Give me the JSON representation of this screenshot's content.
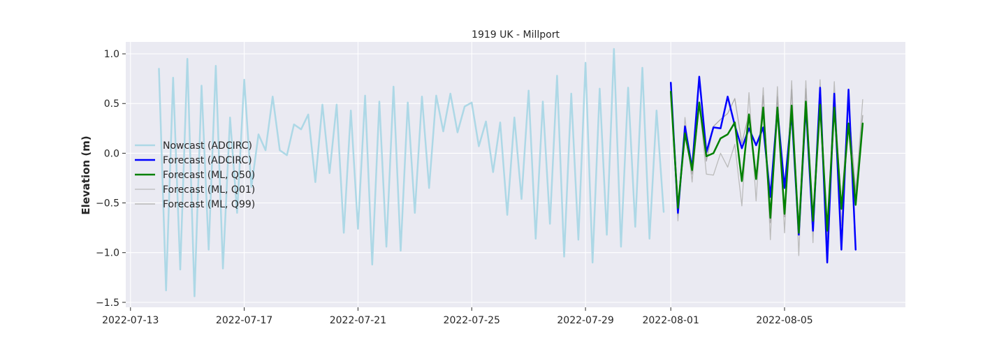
{
  "chart_data": {
    "type": "line",
    "title": "1919 UK - Millport",
    "xlabel": "",
    "ylabel": "Elevation (m)",
    "xlim": [
      "2022-07-12T20:00",
      "2022-08-09T06:00"
    ],
    "ylim": [
      -1.55,
      1.12
    ],
    "x_ticks": [
      "2022-07-13",
      "2022-07-17",
      "2022-07-21",
      "2022-07-25",
      "2022-07-29",
      "2022-08-01",
      "2022-08-05"
    ],
    "y_ticks": [
      1.0,
      0.5,
      0.0,
      -0.5,
      -1.0,
      -1.5
    ],
    "y_tick_labels": [
      "1.0",
      "0.5",
      "0.0",
      "−0.5",
      "−1.0",
      "−1.5"
    ],
    "grid": true,
    "legend_position": "left",
    "series": [
      {
        "name": "Nowcast (ADCIRC)",
        "color": "#add8e6",
        "width": 2.5,
        "x_start": "2022-07-14T00:00",
        "x_step_hours": 6,
        "values": [
          0.85,
          -1.38,
          0.76,
          -1.17,
          0.95,
          -1.44,
          0.68,
          -0.97,
          0.88,
          -1.16,
          0.36,
          -0.6,
          0.74,
          -0.34,
          0.19,
          0.03,
          0.57,
          0.03,
          -0.02,
          0.29,
          0.24,
          0.39,
          -0.29,
          0.49,
          -0.2,
          0.49,
          -0.8,
          0.43,
          -0.76,
          0.58,
          -1.12,
          0.52,
          -0.94,
          0.67,
          -0.98,
          0.51,
          -0.6,
          0.57,
          -0.35,
          0.58,
          0.22,
          0.6,
          0.21,
          0.47,
          0.51,
          0.07,
          0.32,
          -0.19,
          0.31,
          -0.62,
          0.36,
          -0.46,
          0.63,
          -0.86,
          0.52,
          -0.71,
          0.78,
          -1.04,
          0.6,
          -0.87,
          0.91,
          -1.1,
          0.65,
          -0.82,
          1.05,
          -0.94,
          0.66,
          -0.74,
          0.86,
          -0.86,
          0.43,
          -0.59
        ]
      },
      {
        "name": "Forecast (ADCIRC)",
        "color": "#0000ff",
        "width": 2.5,
        "x_start": "2022-08-01T00:00",
        "x_step_hours": 6,
        "values": [
          0.71,
          -0.6,
          0.27,
          -0.15,
          0.77,
          0.01,
          0.26,
          0.25,
          0.57,
          0.28,
          0.05,
          0.25,
          0.08,
          0.26,
          -0.44,
          0.44,
          -0.35,
          0.41,
          -0.82,
          0.48,
          -0.78,
          0.66,
          -1.1,
          0.6,
          -0.97,
          0.64,
          -0.97
        ]
      },
      {
        "name": "Forecast (ML, Q50)",
        "color": "#008000",
        "width": 2.5,
        "x_start": "2022-08-01T00:00",
        "x_step_hours": 6,
        "values": [
          0.62,
          -0.55,
          0.2,
          -0.17,
          0.51,
          -0.03,
          0.0,
          0.15,
          0.19,
          0.31,
          -0.28,
          0.39,
          -0.26,
          0.46,
          -0.65,
          0.46,
          -0.61,
          0.48,
          -0.8,
          0.52,
          -0.68,
          0.49,
          -0.78,
          0.46,
          -0.56,
          0.3,
          -0.52,
          0.3
        ]
      },
      {
        "name": "Forecast (ML, Q01)",
        "color": "#bbbbbb",
        "width": 1.3,
        "x_start": "2022-08-01T00:00",
        "x_step_hours": 6,
        "values": [
          0.68,
          -0.68,
          0.36,
          -0.29,
          0.52,
          -0.21,
          -0.22,
          0.0,
          -0.14,
          0.09,
          -0.53,
          0.61,
          -0.48,
          0.66,
          -0.87,
          0.67,
          -0.8,
          0.73,
          -1.03,
          0.73,
          -0.9,
          0.74,
          -0.87,
          0.72,
          -0.73,
          0.53,
          -0.42,
          0.54
        ]
      },
      {
        "name": "Forecast (ML, Q99)",
        "color": "#aaaaaa",
        "width": 1.3,
        "x_start": "2022-08-01T00:00",
        "x_step_hours": 6,
        "values": [
          0.66,
          -0.62,
          0.28,
          -0.21,
          0.48,
          -0.08,
          0.27,
          0.34,
          0.4,
          0.55,
          0.1,
          0.4,
          -0.25,
          0.58,
          -0.7,
          0.57,
          -0.64,
          0.64,
          -0.78,
          0.65,
          -0.7,
          0.65,
          -0.86,
          0.6,
          -0.54,
          0.5,
          -0.38,
          0.38
        ]
      }
    ]
  }
}
